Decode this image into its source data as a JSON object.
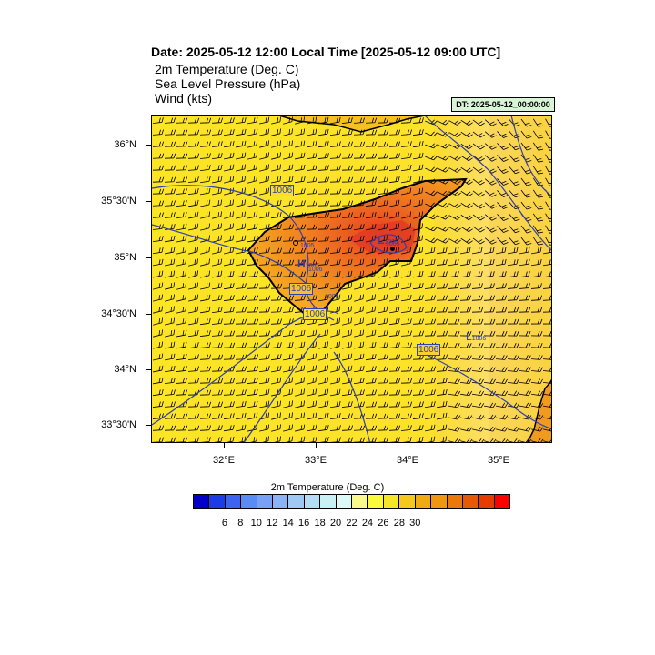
{
  "header": {
    "date_title": "Date: 2025-05-12  12:00 Local Time [2025-05-12  09:00 UTC]",
    "fields": [
      "2m Temperature (Deg. C)",
      "Sea Level Pressure   (hPa)",
      "Wind   (kts)"
    ],
    "dt_label": "DT: 2025-05-12_00:00:00"
  },
  "map": {
    "lat_labels": [
      "36°N",
      "35°30'N",
      "35°N",
      "34°30'N",
      "34°N",
      "33°30'N"
    ],
    "lon_labels": [
      "32°E",
      "33°E",
      "34°E",
      "35°E"
    ],
    "isobar_labels": [
      "1006",
      "1006",
      "1006",
      "1006",
      "1005",
      "1006",
      "1005",
      "1005"
    ],
    "pressure_markers": [
      {
        "symbol": "H",
        "value": "1006"
      },
      {
        "symbol": "L",
        "value": "1005"
      },
      {
        "symbol": "L",
        "value": "1006"
      }
    ],
    "land_color": "#d8d8c8",
    "sea_color": "#fde022"
  },
  "colorbar": {
    "title": "2m Temperature (Deg. C)",
    "labels": [
      "6",
      "8",
      "10",
      "12",
      "14",
      "16",
      "18",
      "20",
      "22",
      "24",
      "26",
      "28",
      "30"
    ],
    "colors": [
      "#0000c8",
      "#1e3ce6",
      "#3c64f0",
      "#5a8cf5",
      "#78a0f5",
      "#8cb4f5",
      "#a0c8f5",
      "#b4dcf5",
      "#c8f0f5",
      "#dcfaf5",
      "#fafa8c",
      "#fafa3c",
      "#f5e628",
      "#f5c81e",
      "#f0aa14",
      "#f0960f",
      "#eb780a",
      "#e65a05",
      "#e63c00",
      "#ff0000"
    ]
  }
}
